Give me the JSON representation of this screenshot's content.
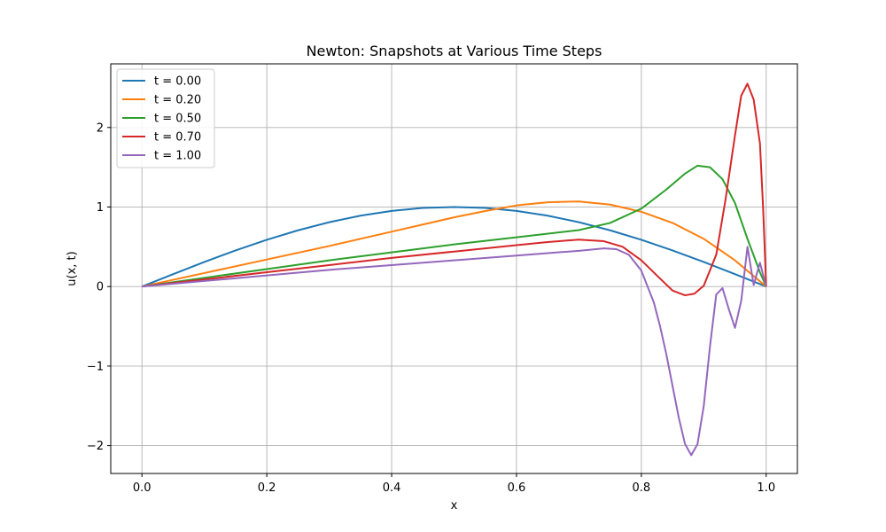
{
  "chart_data": {
    "type": "line",
    "title": "Newton: Snapshots at Various Time Steps",
    "xlabel": "x",
    "ylabel": "u(x, t)",
    "xlim": [
      -0.05,
      1.05
    ],
    "ylim": [
      -2.35,
      2.8
    ],
    "xticks": [
      0.0,
      0.2,
      0.4,
      0.6,
      0.8,
      1.0
    ],
    "xtick_labels": [
      "0.0",
      "0.2",
      "0.4",
      "0.6",
      "0.8",
      "1.0"
    ],
    "yticks": [
      -2,
      -1,
      0,
      1,
      2
    ],
    "ytick_labels": [
      "−2",
      "−1",
      "0",
      "1",
      "2"
    ],
    "grid": true,
    "legend_position": "top-left",
    "series": [
      {
        "name": "t = 0.00",
        "color": "#1f77b4",
        "points": [
          [
            0,
            0
          ],
          [
            0.05,
            0.156
          ],
          [
            0.1,
            0.309
          ],
          [
            0.15,
            0.454
          ],
          [
            0.2,
            0.588
          ],
          [
            0.25,
            0.707
          ],
          [
            0.3,
            0.809
          ],
          [
            0.35,
            0.891
          ],
          [
            0.4,
            0.951
          ],
          [
            0.45,
            0.988
          ],
          [
            0.5,
            1.0
          ],
          [
            0.55,
            0.988
          ],
          [
            0.6,
            0.951
          ],
          [
            0.65,
            0.891
          ],
          [
            0.7,
            0.809
          ],
          [
            0.75,
            0.707
          ],
          [
            0.8,
            0.588
          ],
          [
            0.85,
            0.454
          ],
          [
            0.9,
            0.309
          ],
          [
            0.95,
            0.156
          ],
          [
            1.0,
            0
          ]
        ]
      },
      {
        "name": "t = 0.20",
        "color": "#ff7f0e",
        "points": [
          [
            0,
            0
          ],
          [
            0.1,
            0.17
          ],
          [
            0.2,
            0.34
          ],
          [
            0.3,
            0.51
          ],
          [
            0.4,
            0.69
          ],
          [
            0.5,
            0.87
          ],
          [
            0.55,
            0.95
          ],
          [
            0.6,
            1.02
          ],
          [
            0.65,
            1.06
          ],
          [
            0.7,
            1.07
          ],
          [
            0.75,
            1.03
          ],
          [
            0.8,
            0.94
          ],
          [
            0.85,
            0.8
          ],
          [
            0.9,
            0.6
          ],
          [
            0.95,
            0.33
          ],
          [
            1.0,
            0
          ]
        ]
      },
      {
        "name": "t = 0.50",
        "color": "#2ca02c",
        "points": [
          [
            0,
            0
          ],
          [
            0.1,
            0.11
          ],
          [
            0.2,
            0.22
          ],
          [
            0.3,
            0.33
          ],
          [
            0.4,
            0.43
          ],
          [
            0.5,
            0.53
          ],
          [
            0.6,
            0.62
          ],
          [
            0.7,
            0.71
          ],
          [
            0.75,
            0.8
          ],
          [
            0.8,
            0.98
          ],
          [
            0.84,
            1.22
          ],
          [
            0.87,
            1.42
          ],
          [
            0.89,
            1.52
          ],
          [
            0.91,
            1.5
          ],
          [
            0.93,
            1.35
          ],
          [
            0.95,
            1.05
          ],
          [
            0.97,
            0.6
          ],
          [
            0.99,
            0.18
          ],
          [
            1.0,
            0
          ]
        ]
      },
      {
        "name": "t = 0.70",
        "color": "#d62728",
        "points": [
          [
            0,
            0
          ],
          [
            0.1,
            0.09
          ],
          [
            0.2,
            0.18
          ],
          [
            0.3,
            0.27
          ],
          [
            0.4,
            0.36
          ],
          [
            0.5,
            0.44
          ],
          [
            0.6,
            0.52
          ],
          [
            0.65,
            0.56
          ],
          [
            0.7,
            0.59
          ],
          [
            0.74,
            0.57
          ],
          [
            0.77,
            0.5
          ],
          [
            0.8,
            0.33
          ],
          [
            0.83,
            0.1
          ],
          [
            0.85,
            -0.05
          ],
          [
            0.87,
            -0.11
          ],
          [
            0.885,
            -0.09
          ],
          [
            0.9,
            0.01
          ],
          [
            0.92,
            0.4
          ],
          [
            0.935,
            1.1
          ],
          [
            0.95,
            1.9
          ],
          [
            0.96,
            2.4
          ],
          [
            0.97,
            2.55
          ],
          [
            0.98,
            2.35
          ],
          [
            0.99,
            1.8
          ],
          [
            0.995,
            1.0
          ],
          [
            1.0,
            0
          ]
        ]
      },
      {
        "name": "t = 1.00",
        "color": "#9467bd",
        "points": [
          [
            0,
            0
          ],
          [
            0.1,
            0.07
          ],
          [
            0.2,
            0.14
          ],
          [
            0.3,
            0.21
          ],
          [
            0.4,
            0.27
          ],
          [
            0.5,
            0.33
          ],
          [
            0.6,
            0.39
          ],
          [
            0.7,
            0.45
          ],
          [
            0.74,
            0.48
          ],
          [
            0.76,
            0.47
          ],
          [
            0.78,
            0.4
          ],
          [
            0.8,
            0.2
          ],
          [
            0.81,
            0.0
          ],
          [
            0.82,
            -0.2
          ],
          [
            0.83,
            -0.5
          ],
          [
            0.84,
            -0.85
          ],
          [
            0.85,
            -1.25
          ],
          [
            0.86,
            -1.65
          ],
          [
            0.87,
            -1.98
          ],
          [
            0.88,
            -2.12
          ],
          [
            0.89,
            -1.98
          ],
          [
            0.9,
            -1.5
          ],
          [
            0.91,
            -0.75
          ],
          [
            0.92,
            -0.1
          ],
          [
            0.93,
            -0.02
          ],
          [
            0.94,
            -0.28
          ],
          [
            0.95,
            -0.52
          ],
          [
            0.96,
            -0.18
          ],
          [
            0.97,
            0.5
          ],
          [
            0.98,
            0.02
          ],
          [
            0.99,
            0.3
          ],
          [
            1.0,
            0
          ]
        ]
      }
    ]
  }
}
